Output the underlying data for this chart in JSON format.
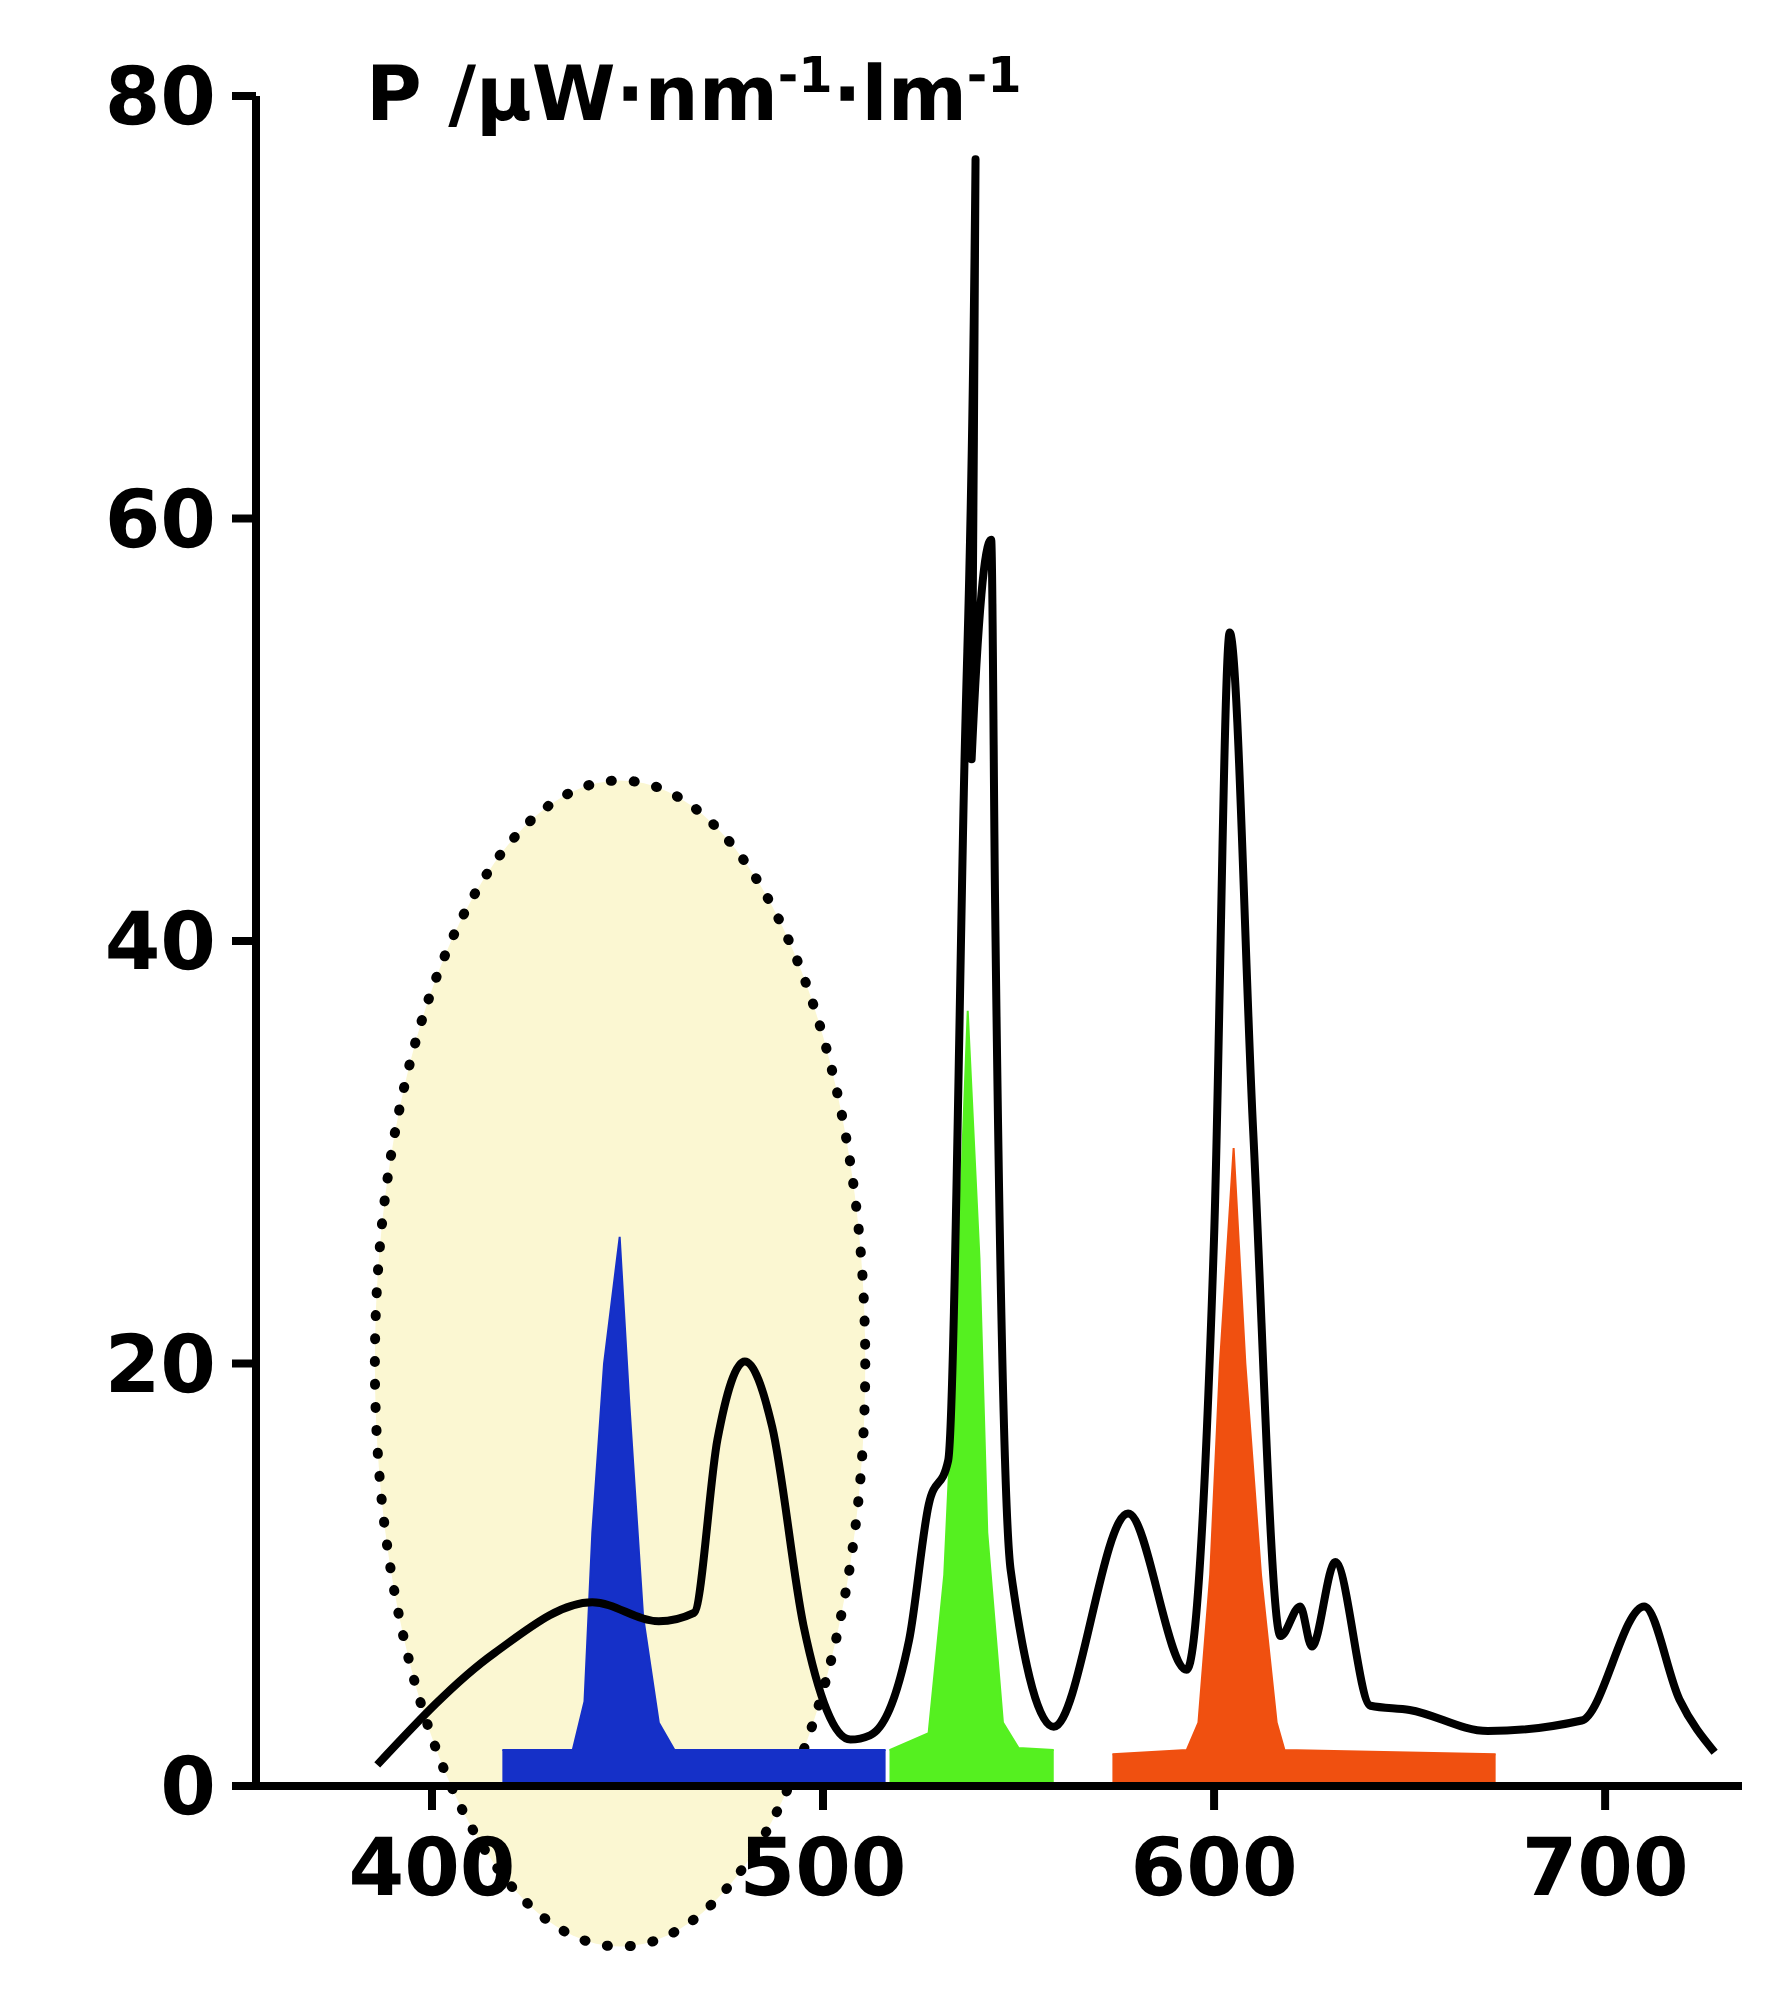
{
  "chart_data": {
    "type": "line",
    "ylabel": "P /μW·nm$^{-1}$·lm$^{-1}$",
    "xlim": [
      355,
      735
    ],
    "xticks": [
      400,
      500,
      600,
      700
    ],
    "ylim": [
      0,
      80
    ],
    "yticks": [
      0,
      20,
      40,
      60,
      80
    ],
    "grid": false,
    "marker": "none",
    "line_style": "solid",
    "series": [
      {
        "type": "area",
        "color": "#1530c8",
        "x": [
          418,
          436,
          439,
          441,
          444,
          448,
          450.5,
          454,
          458,
          462,
          516
        ],
        "values": [
          1.7,
          1.7,
          4,
          12,
          20,
          26,
          18,
          8,
          3,
          1.7,
          1.7
        ]
      },
      {
        "type": "area",
        "color": "#55f020",
        "x": [
          517,
          527,
          531,
          534,
          537,
          540,
          542,
          546,
          550,
          559
        ],
        "values": [
          1.7,
          2.5,
          10,
          22,
          36.7,
          25,
          12,
          3,
          1.8,
          1.7
        ]
      },
      {
        "type": "area",
        "color": "#f05010",
        "x": [
          574,
          593,
          596,
          599,
          601.5,
          605,
          608,
          612,
          616,
          618,
          672
        ],
        "values": [
          1.5,
          1.7,
          3,
          10,
          20,
          30.2,
          20,
          10,
          3,
          1.7,
          1.5
        ]
      },
      {
        "color": "#000000",
        "x": [
          386,
          416,
          441,
          458,
          467,
          473,
          480,
          487,
          495,
          507,
          512,
          522,
          527,
          532,
          536,
          539,
          538,
          543,
          544,
          548,
          559,
          578,
          593,
          600,
          604,
          610,
          617,
          622,
          625,
          631,
          640,
          650,
          670,
          694,
          710,
          719,
          728
        ],
        "values": [
          1.0,
          6.3,
          8.7,
          7.8,
          8.2,
          16.4,
          20.1,
          17,
          7.6,
          2.2,
          2.4,
          6.9,
          13.3,
          15.4,
          47,
          77,
          48.6,
          59,
          41.8,
          10.2,
          2.8,
          12.9,
          5.5,
          26,
          54.6,
          31,
          7.1,
          8.5,
          6.6,
          10.6,
          3.8,
          3.6,
          2.6,
          3.1,
          8.5,
          4.1,
          1.6
        ]
      }
    ]
  }
}
